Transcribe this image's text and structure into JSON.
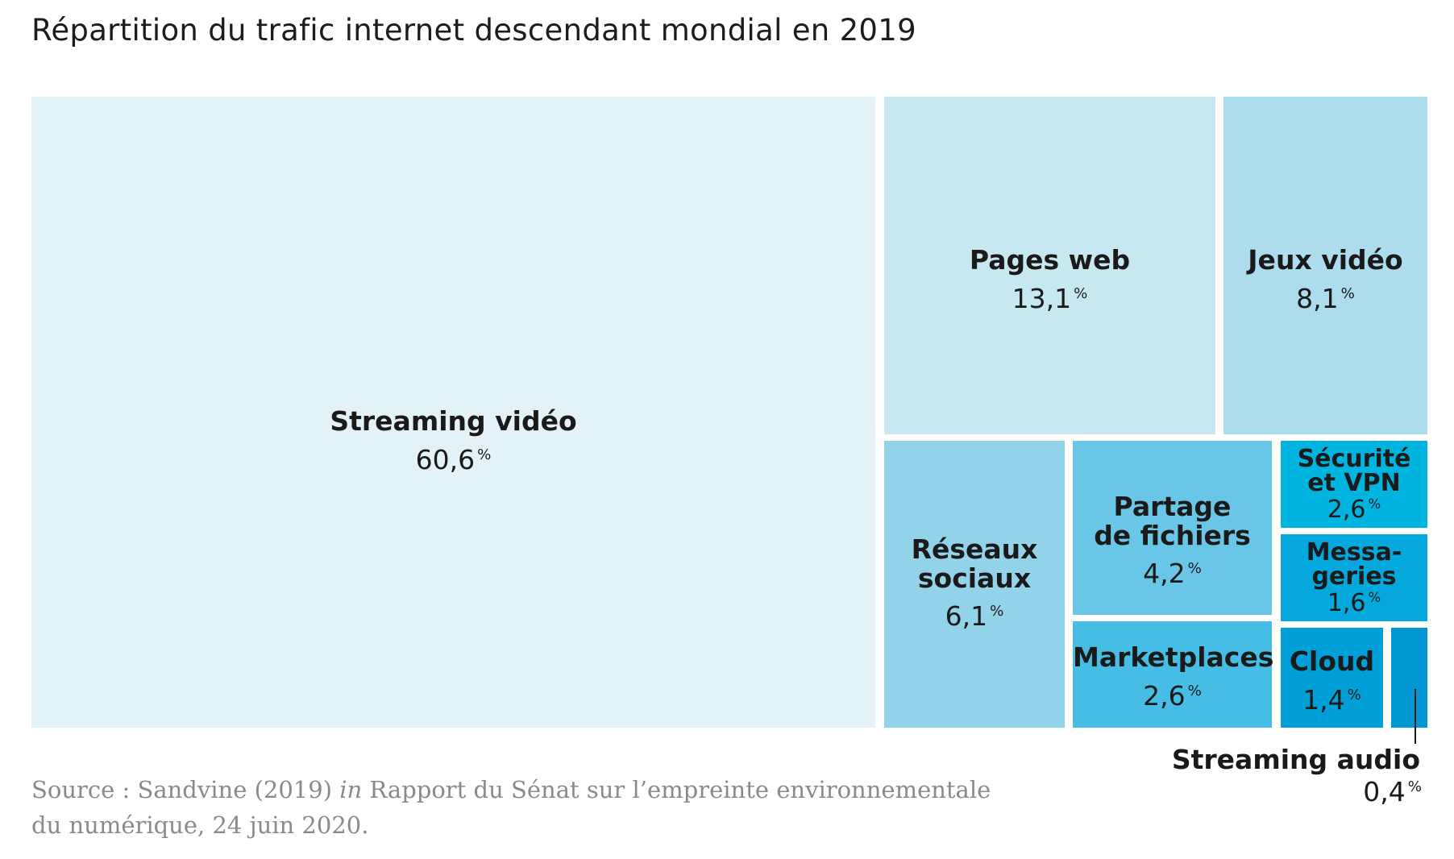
{
  "title": "Répartition du trafic internet descendant mondial en 2019",
  "source": {
    "prefix": "Source : Sandvine (2019) ",
    "italic": "in",
    "rest": " Rapport du Sénat sur l’empreinte environnementale",
    "line2": "du numérique, 24 juin 2020."
  },
  "chart_data": {
    "type": "treemap",
    "unit": "%",
    "items": [
      {
        "label": "Streaming vidéo",
        "value": 60.6,
        "display": "60,6",
        "color": "#e2f2f7"
      },
      {
        "label": "Pages web",
        "value": 13.1,
        "display": "13,1",
        "color": "#c7e7f1"
      },
      {
        "label": "Jeux vidéo",
        "value": 8.1,
        "display": "8,1",
        "color": "#addcec"
      },
      {
        "label": "Réseaux sociaux",
        "value": 6.1,
        "display": "6,1",
        "color": "#92d3ea"
      },
      {
        "label": "Partage de fichiers",
        "value": 4.2,
        "display": "4,2",
        "color": "#6ac6e6"
      },
      {
        "label": "Sécurité et VPN",
        "value": 2.6,
        "display": "2,6",
        "color": "#00b4e0"
      },
      {
        "label": "Messageries",
        "value": 1.6,
        "display": "1,6",
        "color": "#05a8dc"
      },
      {
        "label": "Marketplaces",
        "value": 2.6,
        "display": "2,6",
        "color": "#46bde4"
      },
      {
        "label": "Cloud",
        "value": 1.4,
        "display": "1,4",
        "color": "#009fd8"
      },
      {
        "label": "Streaming audio",
        "value": 0.4,
        "display": "0,4",
        "color": "#0097d3"
      }
    ]
  }
}
